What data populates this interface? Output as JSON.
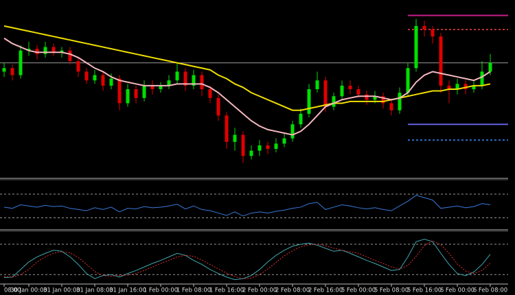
{
  "chart_data": [
    {
      "type": "candlestick",
      "categories": [
        "08:00",
        null,
        null,
        "30 Jan 00:00",
        null,
        null,
        null,
        "31 Jan 00:00",
        null,
        null,
        null,
        "31 Jan 08:00",
        null,
        null,
        null,
        "31 Jan 16:00",
        null,
        null,
        null,
        "1 Feb 00:00",
        null,
        null,
        null,
        "1 Feb 08:00",
        null,
        null,
        null,
        "1 Feb 16:00",
        null,
        null,
        null,
        "2 Feb 00:00",
        null,
        null,
        null,
        "2 Feb 08:00",
        null,
        null,
        null,
        "2 Feb 16:00",
        null,
        null,
        null,
        "5 Feb 00:00",
        null,
        null,
        null,
        "5 Feb 08:00",
        null,
        null,
        null,
        "5 Feb 16:00",
        null,
        null,
        null,
        "6 Feb 00:00",
        null,
        null,
        null,
        "6 Feb 08:00"
      ],
      "open": [
        60,
        62,
        58,
        72,
        73,
        70,
        74,
        71,
        72,
        66,
        60,
        55,
        58,
        52,
        56,
        42,
        50,
        45,
        52,
        50,
        52,
        55,
        60,
        52,
        58,
        50,
        45,
        35,
        20,
        24,
        12,
        15,
        18,
        16,
        19,
        22,
        30,
        36,
        50,
        55,
        40,
        46,
        52,
        50,
        47,
        44,
        46,
        42,
        38,
        48,
        62,
        86,
        84,
        80,
        52,
        50,
        53,
        50,
        52,
        60
      ],
      "close": [
        62,
        58,
        72,
        73,
        70,
        74,
        71,
        72,
        66,
        60,
        55,
        58,
        52,
        56,
        42,
        50,
        45,
        52,
        50,
        52,
        55,
        60,
        52,
        58,
        50,
        45,
        35,
        20,
        24,
        12,
        15,
        18,
        16,
        19,
        22,
        30,
        36,
        50,
        55,
        40,
        46,
        52,
        50,
        47,
        44,
        46,
        42,
        38,
        48,
        62,
        86,
        84,
        80,
        52,
        50,
        53,
        50,
        52,
        60,
        65
      ],
      "high": [
        65,
        64,
        75,
        77,
        75,
        77,
        76,
        74,
        74,
        68,
        62,
        61,
        60,
        59,
        58,
        53,
        52,
        55,
        55,
        54,
        58,
        65,
        62,
        61,
        60,
        52,
        47,
        37,
        28,
        26,
        18,
        21,
        20,
        22,
        25,
        32,
        39,
        53,
        60,
        57,
        48,
        55,
        55,
        52,
        49,
        49,
        48,
        44,
        51,
        65,
        90,
        89,
        86,
        82,
        55,
        56,
        55,
        55,
        66,
        70
      ],
      "low": [
        57,
        55,
        56,
        69,
        67,
        68,
        69,
        68,
        64,
        57,
        53,
        53,
        49,
        50,
        38,
        40,
        42,
        43,
        47,
        48,
        50,
        53,
        49,
        50,
        46,
        42,
        32,
        16,
        15,
        8,
        10,
        12,
        13,
        14,
        17,
        20,
        28,
        34,
        48,
        37,
        38,
        44,
        47,
        45,
        41,
        42,
        39,
        35,
        36,
        46,
        60,
        80,
        76,
        48,
        42,
        47,
        47,
        48,
        50,
        58
      ],
      "up_color": "#00e000",
      "down_color": "#e00000",
      "ylim": [
        0,
        100
      ],
      "series": [
        {
          "color": "#f0e000",
          "values": [
            86,
            85,
            84,
            83,
            82,
            81,
            80,
            79,
            78,
            77,
            76,
            75,
            74,
            73,
            72,
            71,
            70,
            69,
            68,
            67,
            66,
            65,
            64,
            63,
            62,
            61,
            58,
            56,
            53,
            51,
            48,
            46,
            44,
            42,
            40,
            38,
            38,
            39,
            40,
            41,
            42,
            42,
            43,
            43,
            43,
            43,
            43,
            44,
            45,
            46,
            47,
            48,
            49,
            49,
            50,
            50,
            51,
            52,
            52,
            53
          ]
        },
        {
          "color": "#f5b8c0",
          "values": [
            79,
            76,
            74,
            72,
            71,
            71,
            71,
            71,
            70,
            68,
            65,
            62,
            60,
            57,
            55,
            54,
            53,
            52,
            52,
            52,
            52,
            53,
            53,
            53,
            53,
            51,
            48,
            44,
            40,
            36,
            32,
            29,
            27,
            26,
            25,
            24,
            26,
            30,
            35,
            40,
            42,
            44,
            45,
            46,
            46,
            46,
            45,
            44,
            45,
            48,
            54,
            58,
            60,
            59,
            58,
            57,
            56,
            55,
            57,
            60
          ]
        }
      ],
      "levels": [
        {
          "value": 65,
          "color": "#9a9a9a",
          "dashed": false,
          "full": true
        },
        {
          "value": 92,
          "color": "#c8208c",
          "dashed": false,
          "full": false
        },
        {
          "value": 84,
          "color": "#c03030",
          "dashed": true,
          "full": false
        },
        {
          "value": 30,
          "color": "#6060e0",
          "dashed": false,
          "full": false
        },
        {
          "value": 21,
          "color": "#3070d0",
          "dashed": true,
          "full": false
        }
      ]
    },
    {
      "type": "line",
      "ylim": [
        12,
        92
      ],
      "levels": [
        70,
        30
      ],
      "series": [
        {
          "color": "#3a78d8",
          "values": [
            48,
            46,
            52,
            50,
            48,
            51,
            49,
            50,
            46,
            44,
            42,
            47,
            44,
            48,
            40,
            46,
            45,
            49,
            47,
            48,
            50,
            53,
            45,
            50,
            44,
            42,
            38,
            34,
            40,
            33,
            38,
            40,
            38,
            41,
            43,
            46,
            48,
            54,
            56,
            44,
            48,
            52,
            50,
            47,
            45,
            47,
            44,
            42,
            50,
            58,
            68,
            64,
            60,
            46,
            48,
            50,
            47,
            49,
            54,
            52
          ]
        }
      ]
    },
    {
      "type": "line",
      "ylim": [
        4,
        103
      ],
      "levels": [
        80,
        20
      ],
      "series": [
        {
          "color": "#40a8b0",
          "dashed": false,
          "values": [
            14,
            15,
            30,
            45,
            55,
            62,
            68,
            66,
            55,
            40,
            22,
            12,
            18,
            20,
            15,
            22,
            28,
            35,
            42,
            48,
            55,
            62,
            58,
            48,
            40,
            30,
            22,
            15,
            10,
            12,
            18,
            30,
            45,
            58,
            68,
            76,
            80,
            82,
            78,
            72,
            66,
            68,
            62,
            55,
            48,
            42,
            35,
            28,
            30,
            55,
            85,
            90,
            85,
            62,
            40,
            22,
            18,
            25,
            40,
            60
          ]
        },
        {
          "color": "#e03030",
          "dashed": true,
          "values": [
            16,
            15,
            20,
            30,
            45,
            55,
            62,
            65,
            63,
            54,
            40,
            26,
            18,
            17,
            18,
            19,
            22,
            28,
            35,
            42,
            48,
            55,
            58,
            56,
            49,
            40,
            31,
            23,
            16,
            12,
            13,
            20,
            31,
            44,
            57,
            67,
            75,
            79,
            80,
            77,
            72,
            68,
            65,
            62,
            55,
            48,
            42,
            35,
            31,
            38,
            56,
            77,
            87,
            79,
            62,
            41,
            27,
            22,
            28,
            42
          ]
        }
      ]
    }
  ]
}
